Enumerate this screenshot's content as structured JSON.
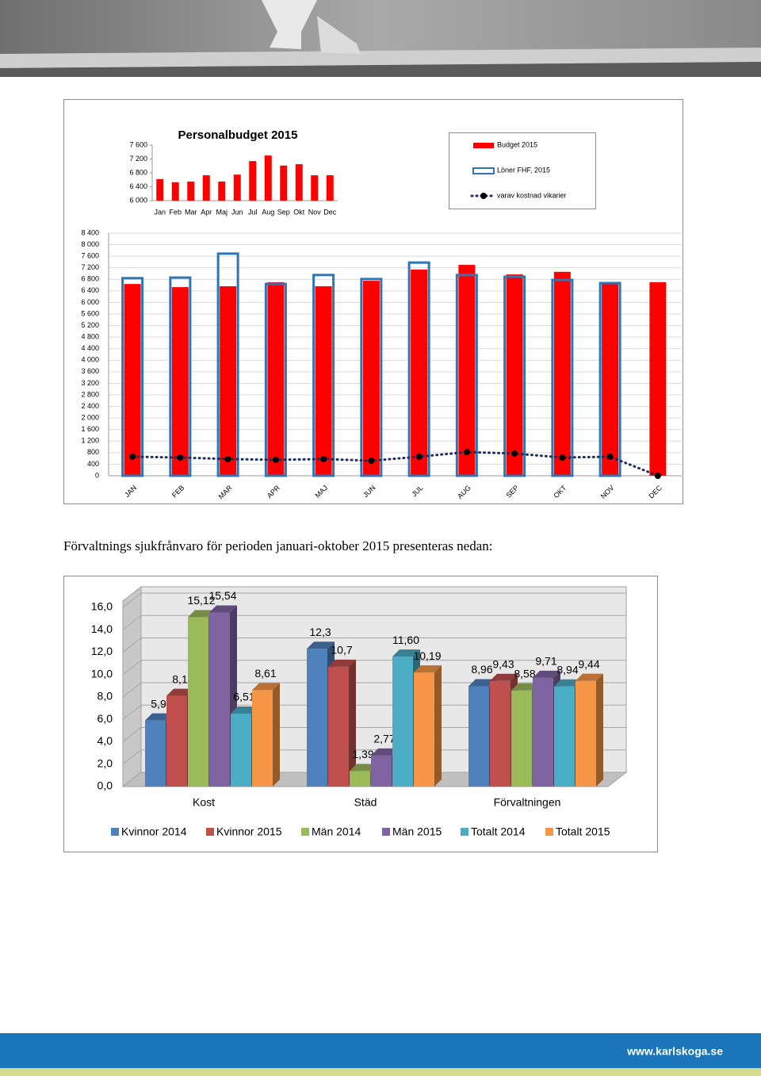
{
  "chart_data": [
    {
      "type": "bar",
      "title": "Personalbudget 2015",
      "categories": [
        "Jan",
        "Feb",
        "Mar",
        "Apr",
        "Maj",
        "Jun",
        "Jul",
        "Aug",
        "Sep",
        "Okt",
        "Nov",
        "Dec"
      ],
      "values": [
        6620,
        6530,
        6550,
        6730,
        6550,
        6750,
        7140,
        7300,
        7010,
        7050,
        6730,
        6730
      ],
      "color": "#ff0000",
      "ylim": [
        6000,
        7600
      ],
      "yticks": [
        {
          "value": 6000,
          "label": "6 000"
        },
        {
          "value": 6400,
          "label": "6 400"
        },
        {
          "value": 6800,
          "label": "6 800"
        },
        {
          "value": 7200,
          "label": "7 200"
        },
        {
          "value": 7600,
          "label": "7 600"
        }
      ],
      "grid": false
    },
    {
      "type": "bar",
      "categories": [
        "JAN",
        "FEB",
        "MAR",
        "APR",
        "MAJ",
        "JUN",
        "JUL",
        "AUG",
        "SEP",
        "OKT",
        "NOV",
        "DEC"
      ],
      "series": [
        {
          "name": "Budget 2015",
          "type": "bar",
          "color": "#ff0000",
          "values": [
            6640,
            6530,
            6560,
            6700,
            6560,
            6750,
            7140,
            7300,
            6970,
            7060,
            6670,
            6700
          ]
        },
        {
          "name": "Löner FHF, 2015",
          "type": "bar-outline",
          "color": "#2e75b6",
          "values": [
            6840,
            6860,
            7690,
            6640,
            6950,
            6810,
            7380,
            6950,
            6890,
            6780,
            6670,
            null
          ]
        },
        {
          "name": "varav kostnad vikarier",
          "type": "line",
          "color": "#1f2d5c",
          "values": [
            660,
            630,
            580,
            550,
            580,
            520,
            660,
            820,
            770,
            630,
            660,
            0
          ]
        }
      ],
      "ylim": [
        0,
        8400
      ],
      "yticks": [
        0,
        {
          "value": 400,
          "label": "400"
        },
        {
          "value": 800,
          "label": "800"
        },
        {
          "value": 1200,
          "label": "1 200"
        },
        {
          "value": 1600,
          "label": "1 600"
        },
        {
          "value": 2000,
          "label": "2 000"
        },
        {
          "value": 2400,
          "label": "2 400"
        },
        {
          "value": 2800,
          "label": "2 800"
        },
        {
          "value": 3200,
          "label": "3 200"
        },
        {
          "value": 3600,
          "label": "3 600"
        },
        {
          "value": 4000,
          "label": "4 000"
        },
        {
          "value": 4400,
          "label": "4 400"
        },
        {
          "value": 4800,
          "label": "4 800"
        },
        {
          "value": 5200,
          "label": "5 200"
        },
        {
          "value": 5600,
          "label": "5 600"
        },
        {
          "value": 6000,
          "label": "6 000"
        },
        {
          "value": 6400,
          "label": "6 400"
        },
        {
          "value": 6800,
          "label": "6 800"
        },
        {
          "value": 7200,
          "label": "7 200"
        },
        {
          "value": 7600,
          "label": "7 600"
        },
        {
          "value": 8000,
          "label": "8 000"
        },
        {
          "value": 8400,
          "label": "8 400"
        }
      ],
      "grid": true,
      "legend": "top-right"
    },
    {
      "type": "bar3d",
      "categories": [
        "Kost",
        "Städ",
        "Förvaltningen"
      ],
      "series": [
        {
          "name": "Kvinnor 2014",
          "color": "#4f81bd",
          "values": [
            5.9,
            12.3,
            8.96
          ],
          "value_labels": [
            "5,9",
            "12,3",
            "8,96"
          ]
        },
        {
          "name": "Kvinnor 2015",
          "color": "#c0504d",
          "values": [
            8.1,
            10.7,
            9.43
          ],
          "value_labels": [
            "8,1",
            "10,7",
            "9,43"
          ]
        },
        {
          "name": "Män 2014",
          "color": "#9bbb59",
          "values": [
            15.12,
            1.39,
            8.58
          ],
          "value_labels": [
            "15,12",
            "1,39",
            "8,58"
          ]
        },
        {
          "name": "Män 2015",
          "color": "#8064a2",
          "values": [
            15.54,
            2.77,
            9.71
          ],
          "value_labels": [
            "15,54",
            "2,77",
            "9,71"
          ]
        },
        {
          "name": "Totalt 2014",
          "color": "#4bacc6",
          "values": [
            6.51,
            11.6,
            8.94
          ],
          "value_labels": [
            "6,51",
            "11,60",
            "8,94"
          ]
        },
        {
          "name": "Totalt 2015",
          "color": "#f79646",
          "values": [
            8.61,
            10.19,
            9.44
          ],
          "value_labels": [
            "8,61",
            "10,19",
            "9,44"
          ]
        }
      ],
      "ylim": [
        0,
        16
      ],
      "yticks": [
        {
          "value": 0,
          "label": "0,0"
        },
        {
          "value": 2,
          "label": "2,0"
        },
        {
          "value": 4,
          "label": "4,0"
        },
        {
          "value": 6,
          "label": "6,0"
        },
        {
          "value": 8,
          "label": "8,0"
        },
        {
          "value": 10,
          "label": "10,0"
        },
        {
          "value": 12,
          "label": "12,0"
        },
        {
          "value": 14,
          "label": "14,0"
        },
        {
          "value": 16,
          "label": "16,0"
        }
      ],
      "grid": true,
      "legend": "bottom"
    }
  ],
  "body_text": "Förvaltnings sjukfrånvaro för perioden januari-oktober 2015 presenteras nedan:",
  "footer": {
    "url": "www.karlskoga.se"
  }
}
